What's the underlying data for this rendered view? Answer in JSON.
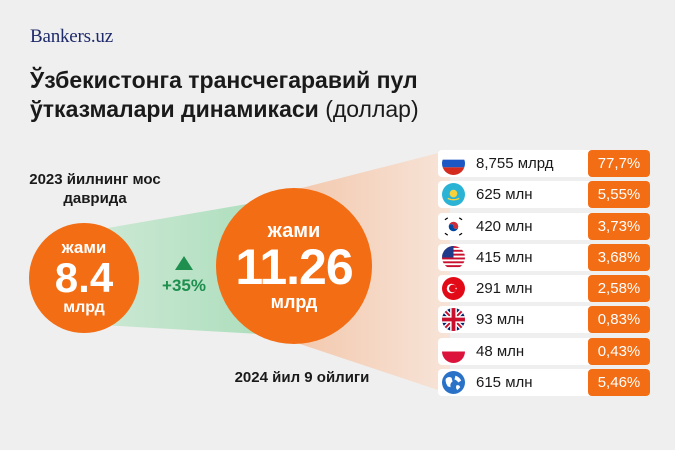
{
  "brand": "Bankers.uz",
  "title": {
    "main": "Ўзбекистонга трансчегаравий пул ўтказмалари динамикаси",
    "unit": "(доллар)"
  },
  "chart_data": {
    "type": "bar",
    "title": "Ўзбекистонга трансчегаравий пул ўтказмалари динамикаси (доллар)",
    "comparison": {
      "previous": {
        "caption": "2023 йилнинг мос даврида",
        "label": "жами",
        "value": 8.4,
        "value_text": "8.4",
        "unit": "млрд"
      },
      "current": {
        "caption": "2024 йил 9 ойлиги",
        "label": "жами",
        "value": 11.26,
        "value_text": "11.26",
        "unit": "млрд"
      },
      "growth": "+35%"
    },
    "categories": [
      "Russia",
      "Kazakhstan",
      "South Korea",
      "USA",
      "Turkey",
      "United Kingdom",
      "Poland",
      "Other"
    ],
    "values_usd": [
      8755000000,
      625000000,
      420000000,
      415000000,
      291000000,
      93000000,
      48000000,
      615000000
    ],
    "series": [
      {
        "amount_labels": [
          "8,755 млрд",
          "625 млн",
          "420 млн",
          "415 млн",
          "291 млн",
          "93 млн",
          "48 млн",
          "615 млн"
        ],
        "shares": [
          77.7,
          5.55,
          3.73,
          3.68,
          2.58,
          0.83,
          0.43,
          5.46
        ],
        "share_labels": [
          "77,7%",
          "5,55%",
          "3,73%",
          "3,68%",
          "2,58%",
          "0,83%",
          "0,43%",
          "5,46%"
        ]
      }
    ],
    "rows": [
      {
        "flag": "russia-flag-icon",
        "amount": "8,755 млрд",
        "share": "77,7%"
      },
      {
        "flag": "kazakhstan-flag-icon",
        "amount": "625 млн",
        "share": "5,55%"
      },
      {
        "flag": "south-korea-flag-icon",
        "amount": "420 млн",
        "share": "3,73%"
      },
      {
        "flag": "usa-flag-icon",
        "amount": "415 млн",
        "share": "3,68%"
      },
      {
        "flag": "turkey-flag-icon",
        "amount": "291 млн",
        "share": "2,58%"
      },
      {
        "flag": "uk-flag-icon",
        "amount": "93 млн",
        "share": "0,83%"
      },
      {
        "flag": "poland-flag-icon",
        "amount": "48 млн",
        "share": "0,43%"
      },
      {
        "flag": "globe-icon",
        "amount": "615 млн",
        "share": "5,46%"
      }
    ]
  },
  "colors": {
    "accent": "#f26d14",
    "growth": "#1e8f4e",
    "brand": "#1f2a6b",
    "background": "#efefef"
  }
}
